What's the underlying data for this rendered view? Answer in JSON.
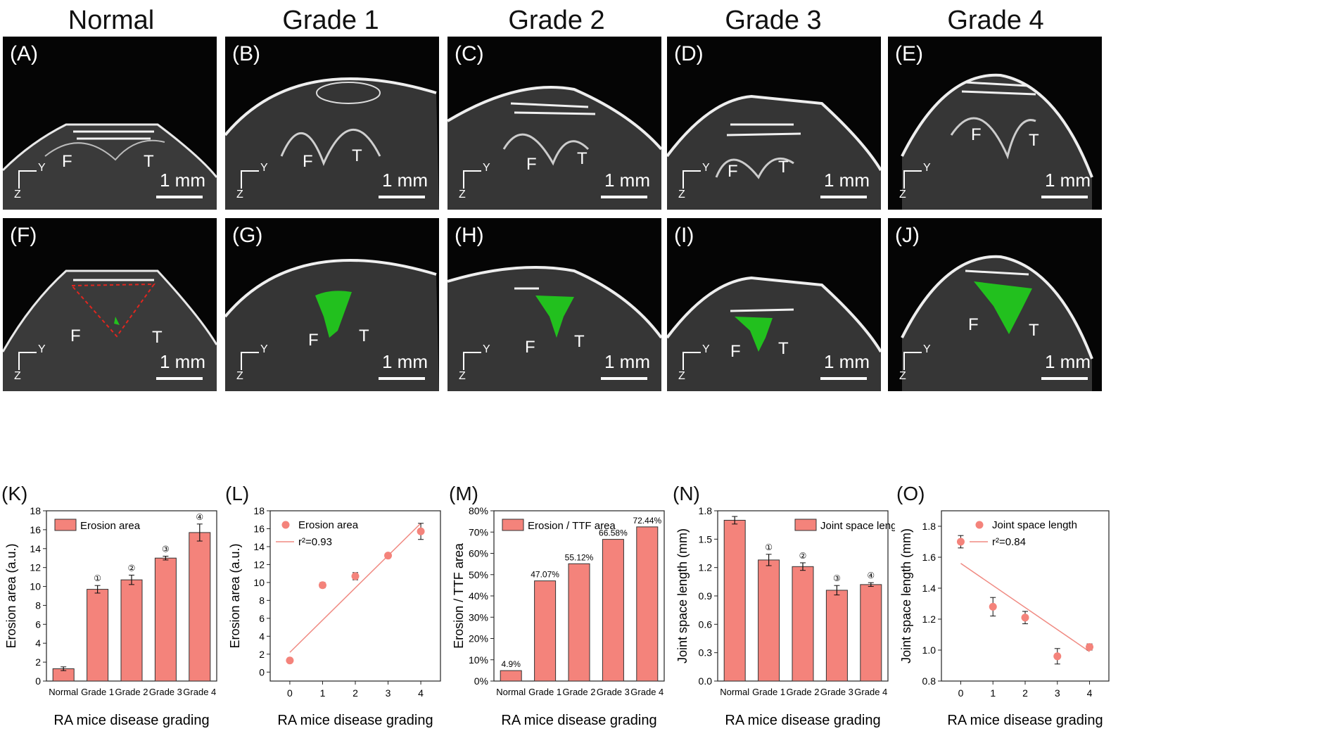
{
  "columns": [
    "Normal",
    "Grade 1",
    "Grade 2",
    "Grade 3",
    "Grade 4"
  ],
  "images_top": [
    {
      "label": "(A)",
      "f": "F",
      "t": "T",
      "scale": "1 mm"
    },
    {
      "label": "(B)",
      "f": "F",
      "t": "T",
      "scale": "1 mm"
    },
    {
      "label": "(C)",
      "f": "F",
      "t": "T",
      "scale": "1 mm"
    },
    {
      "label": "(D)",
      "f": "F",
      "t": "T",
      "scale": "1 mm"
    },
    {
      "label": "(E)",
      "f": "F",
      "t": "T",
      "scale": "1 mm"
    }
  ],
  "images_bottom": [
    {
      "label": "(F)",
      "f": "F",
      "t": "T",
      "scale": "1 mm"
    },
    {
      "label": "(G)",
      "f": "F",
      "t": "T",
      "scale": "1 mm"
    },
    {
      "label": "(H)",
      "f": "F",
      "t": "T",
      "scale": "1 mm"
    },
    {
      "label": "(I)",
      "f": "F",
      "t": "T",
      "scale": "1 mm"
    },
    {
      "label": "(J)",
      "f": "F",
      "t": "T",
      "scale": "1 mm"
    }
  ],
  "axis_labels": {
    "y": "Y",
    "z": "Z"
  },
  "colors": {
    "bar": "#f4837b",
    "bar_edge": "#333333",
    "fit": "#f08a82",
    "segmentation": "#22c01e",
    "outline": "#e0261f"
  },
  "chart_data": [
    {
      "label": "(K)",
      "type": "bar",
      "categories": [
        "Normal",
        "Grade 1",
        "Grade 2",
        "Grade 3",
        "Grade 4"
      ],
      "series": [
        {
          "name": "Erosion area",
          "values": [
            1.3,
            9.7,
            10.7,
            13.0,
            15.7
          ],
          "errors": [
            0.2,
            0.4,
            0.5,
            0.2,
            0.9
          ]
        }
      ],
      "markers": [
        "",
        "①",
        "②",
        "③",
        "④"
      ],
      "xlabel": "RA mice disease grading",
      "ylabel": "Erosion area (a.u.)",
      "ylim": [
        0,
        18
      ],
      "yticks": [
        "0",
        "2",
        "4",
        "6",
        "8",
        "10",
        "12",
        "14",
        "16",
        "18"
      ],
      "legend": "top-left"
    },
    {
      "label": "(L)",
      "type": "scatter",
      "x": [
        0,
        1,
        2,
        3,
        4
      ],
      "xticks": [
        "0",
        "1",
        "2",
        "3",
        "4"
      ],
      "series": [
        {
          "name": "Erosion area",
          "values": [
            1.3,
            9.7,
            10.7,
            13.0,
            15.7
          ],
          "errors": [
            0.2,
            0.3,
            0.4,
            0.2,
            0.9
          ]
        }
      ],
      "fit": {
        "label": "r²=0.93",
        "y0": 2.2,
        "y1": 16.6
      },
      "xlabel": "RA mice disease grading",
      "ylabel": "Erosion area (a.u.)",
      "ylim": [
        -1,
        18
      ],
      "yticks": [
        "0",
        "2",
        "4",
        "6",
        "8",
        "10",
        "12",
        "14",
        "16",
        "18"
      ],
      "legend": "top-left"
    },
    {
      "label": "(M)",
      "type": "bar",
      "categories": [
        "Normal",
        "Grade 1",
        "Grade 2",
        "Grade 3",
        "Grade 4"
      ],
      "series": [
        {
          "name": "Erosion / TTF area",
          "values": [
            4.9,
            47.07,
            55.12,
            66.58,
            72.44
          ]
        }
      ],
      "data_labels": [
        "4.9%",
        "47.07%",
        "55.12%",
        "66.58%",
        "72.44%"
      ],
      "xlabel": "RA mice disease grading",
      "ylabel": "Erosion / TTF area",
      "ylim": [
        0,
        80
      ],
      "yticks": [
        "0%",
        "10%",
        "20%",
        "30%",
        "40%",
        "50%",
        "60%",
        "70%",
        "80%"
      ],
      "legend": "top-left"
    },
    {
      "label": "(N)",
      "type": "bar",
      "categories": [
        "Normal",
        "Grade 1",
        "Grade 2",
        "Grade 3",
        "Grade 4"
      ],
      "series": [
        {
          "name": "Joint space length",
          "values": [
            1.7,
            1.28,
            1.21,
            0.96,
            1.02
          ],
          "errors": [
            0.04,
            0.06,
            0.04,
            0.05,
            0.02
          ]
        }
      ],
      "markers": [
        "",
        "①",
        "②",
        "③",
        "④"
      ],
      "xlabel": "RA mice disease grading",
      "ylabel": "Joint space length (mm)",
      "ylim": [
        0,
        1.8
      ],
      "yticks": [
        "0.0",
        "0.3",
        "0.6",
        "0.9",
        "1.2",
        "1.5",
        "1.8"
      ],
      "legend": "top-right"
    },
    {
      "label": "(O)",
      "type": "scatter",
      "x": [
        0,
        1,
        2,
        3,
        4
      ],
      "xticks": [
        "0",
        "1",
        "2",
        "3",
        "4"
      ],
      "series": [
        {
          "name": "Joint space length",
          "values": [
            1.7,
            1.28,
            1.21,
            0.96,
            1.02
          ],
          "errors": [
            0.04,
            0.06,
            0.04,
            0.05,
            0.02
          ]
        }
      ],
      "fit": {
        "label": "r²=0.84",
        "y0": 1.56,
        "y1": 0.99
      },
      "xlabel": "RA mice disease grading",
      "ylabel": "Joint space length (mm)",
      "ylim": [
        0.8,
        1.9
      ],
      "yticks": [
        "0.8",
        "1.0",
        "1.2",
        "1.4",
        "1.6",
        "1.8"
      ],
      "legend": "top-right"
    }
  ]
}
